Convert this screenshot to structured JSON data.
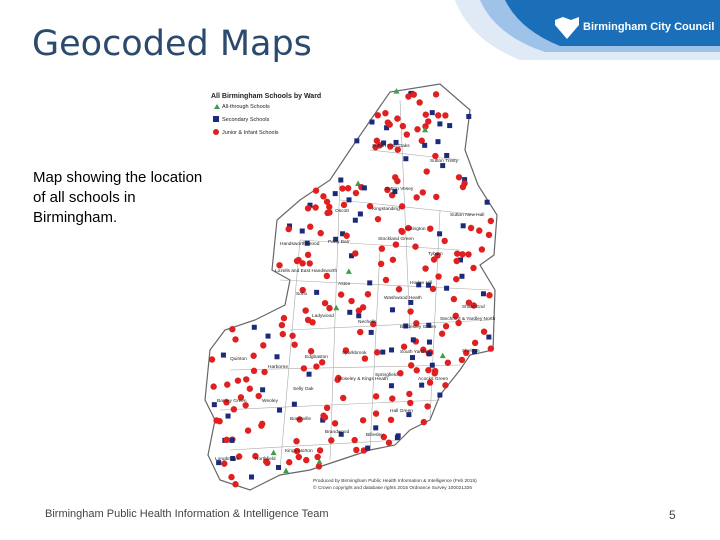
{
  "header": {
    "title": "Geocoded Maps",
    "logo": "Birmingham City Council"
  },
  "body": {
    "lines": [
      "Map showing the location",
      "of all schools in",
      "Birmingham."
    ]
  },
  "map": {
    "title": "All Birmingham Schools by Ward",
    "legend": [
      "All-through Schools",
      "Secondary Schools",
      "Junior & Infant Schools"
    ],
    "wards": [
      "Sutton Four Oaks",
      "Sutton Trinity",
      "Sutton Vesey",
      "Sutton New Hall",
      "Oscott",
      "Kingstanding",
      "Erdington",
      "Handsworth Wood",
      "Perry Barr",
      "Stockland Green",
      "Tyburn",
      "Lozells and East Handsworth",
      "Aston",
      "Hodge Hill",
      "Soho",
      "Washwood Heath",
      "Shard End",
      "Ladywood",
      "Nechells",
      "Bordesley Green",
      "Stechford & Yardley North",
      "Quinton",
      "Edgbaston",
      "Sparkbrook",
      "South Yardley",
      "Sheldon",
      "Harborne",
      "Moseley & Kings Heath",
      "Springfield",
      "Acocks Green",
      "Selly Oak",
      "Bartley Green",
      "Weoley",
      "Bournville",
      "Hall Green",
      "Brandwood",
      "Billesley",
      "Longbridge",
      "Northfield",
      "Kings Norton"
    ],
    "credit": [
      "Produced by Birmingham Public Health Information & Intelligence (Feb 2015)",
      "© Crown copyright and database rights 2015 Ordnance Survey 100021326"
    ]
  },
  "footer": {
    "source": "Birmingham Public Health Information & Intelligence Team",
    "page": "5"
  }
}
